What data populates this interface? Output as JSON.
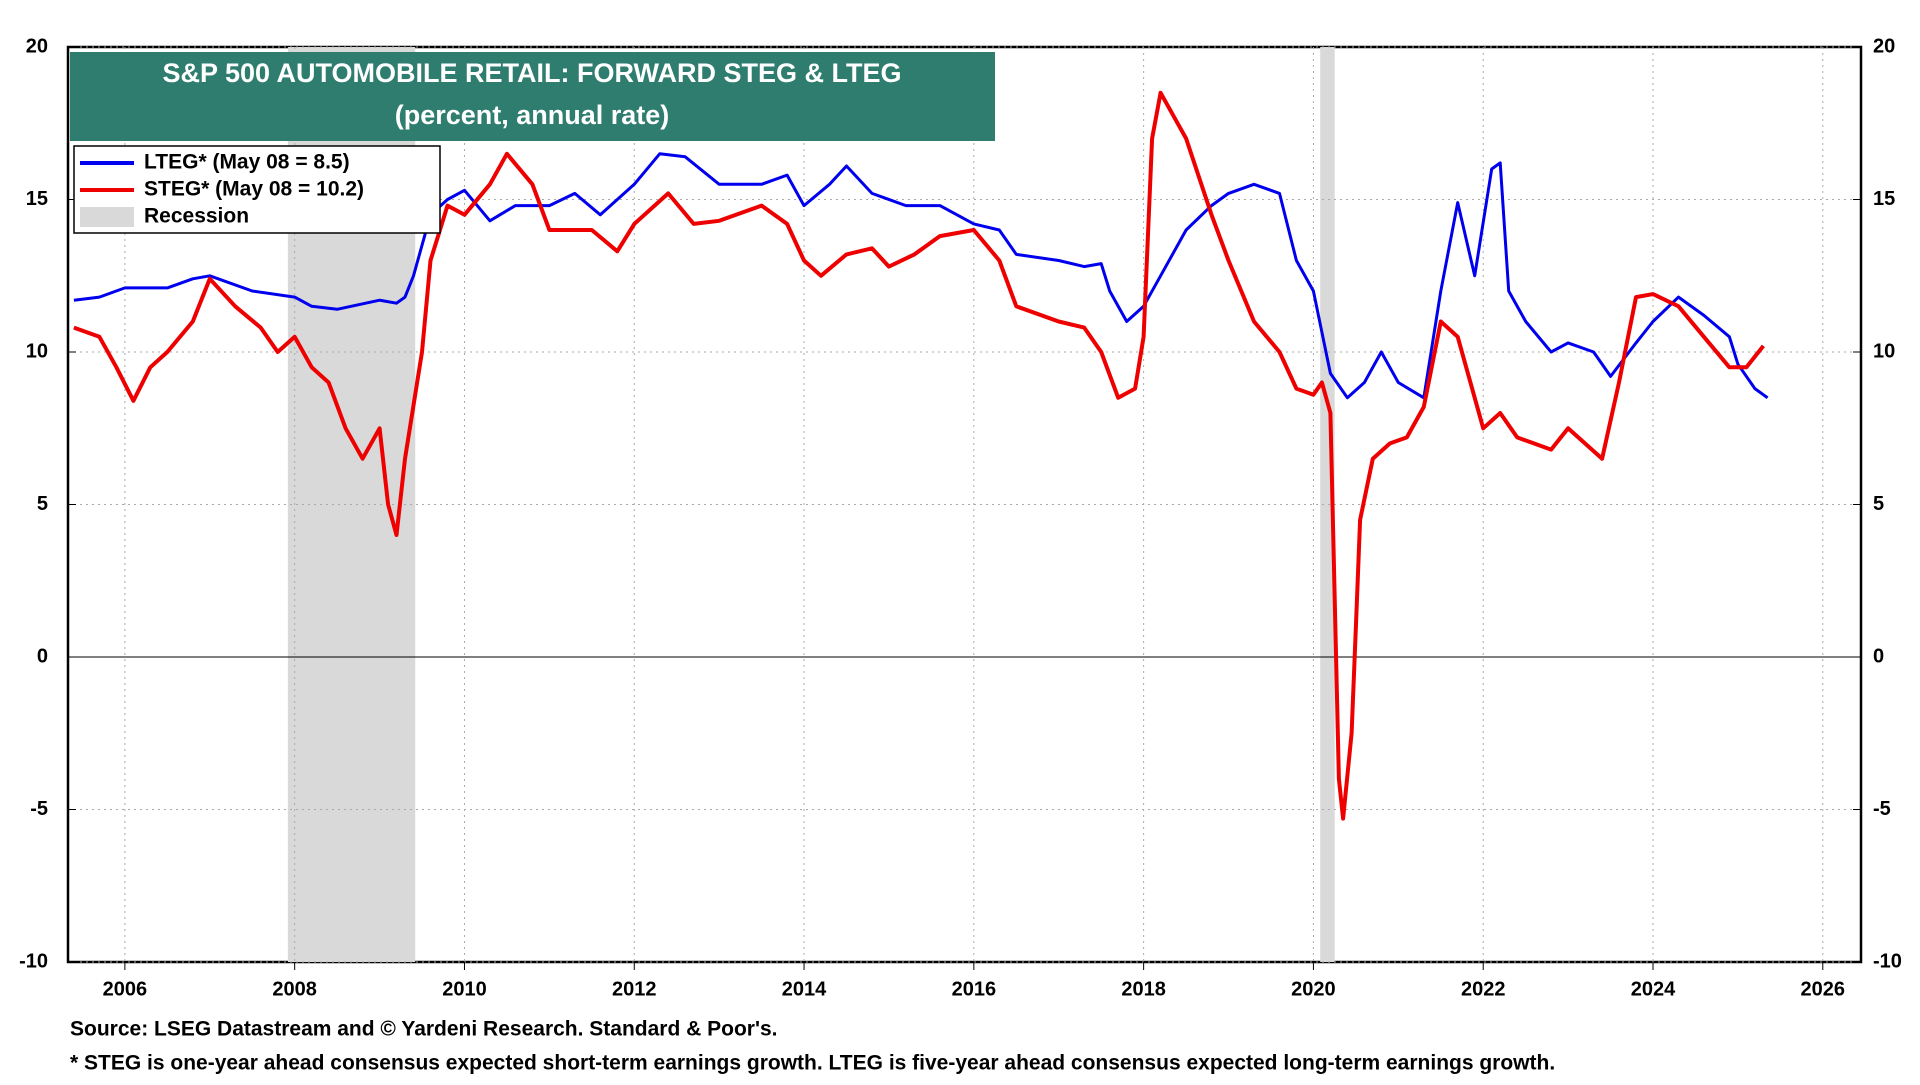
{
  "chart_data": {
    "type": "line",
    "title": "S&P 500 AUTOMOBILE RETAIL: FORWARD STEG & LTEG",
    "subtitle": "(percent, annual rate)",
    "xlim": [
      2005.33,
      2026.45
    ],
    "xticks": [
      2006,
      2008,
      2010,
      2012,
      2014,
      2016,
      2018,
      2020,
      2022,
      2024,
      2026
    ],
    "ylim": [
      -10,
      20
    ],
    "yticks": [
      -10,
      -5,
      0,
      5,
      10,
      15,
      20
    ],
    "grid": true,
    "legend": "upper left",
    "shading": {
      "name": "Recession",
      "color": "#d9d9d9",
      "ranges": [
        [
          2007.92,
          2009.42
        ],
        [
          2020.08,
          2020.25
        ]
      ]
    },
    "series": [
      {
        "name": "LTEG* (May 08 = 8.5)",
        "color": "#0000ee",
        "x": [
          2005.4,
          2005.7,
          2006.0,
          2006.5,
          2006.8,
          2007.0,
          2007.5,
          2008.0,
          2008.2,
          2008.5,
          2009.0,
          2009.2,
          2009.3,
          2009.4,
          2009.6,
          2009.8,
          2010.0,
          2010.3,
          2010.6,
          2011.0,
          2011.3,
          2011.6,
          2012.0,
          2012.3,
          2012.6,
          2013.0,
          2013.5,
          2013.8,
          2014.0,
          2014.3,
          2014.5,
          2014.8,
          2015.2,
          2015.6,
          2016.0,
          2016.3,
          2016.5,
          2017.0,
          2017.3,
          2017.5,
          2017.6,
          2017.8,
          2018.0,
          2018.2,
          2018.5,
          2018.8,
          2019.0,
          2019.3,
          2019.6,
          2019.8,
          2020.0,
          2020.2,
          2020.4,
          2020.6,
          2020.8,
          2021.0,
          2021.3,
          2021.5,
          2021.7,
          2021.9,
          2022.1,
          2022.2,
          2022.3,
          2022.5,
          2022.8,
          2023.0,
          2023.3,
          2023.5,
          2023.8,
          2024.0,
          2024.3,
          2024.6,
          2024.9,
          2025.0,
          2025.2,
          2025.35
        ],
        "values": [
          11.7,
          11.8,
          12.1,
          12.1,
          12.4,
          12.5,
          12.0,
          11.8,
          11.5,
          11.4,
          11.7,
          11.6,
          11.8,
          12.5,
          14.5,
          15.0,
          15.3,
          14.3,
          14.8,
          14.8,
          15.2,
          14.5,
          15.5,
          16.5,
          16.4,
          15.5,
          15.5,
          15.8,
          14.8,
          15.5,
          16.1,
          15.2,
          14.8,
          14.8,
          14.2,
          14.0,
          13.2,
          13.0,
          12.8,
          12.9,
          12.0,
          11.0,
          11.5,
          12.5,
          14.0,
          14.8,
          15.2,
          15.5,
          15.2,
          13.0,
          12.0,
          9.3,
          8.5,
          9.0,
          10.0,
          9.0,
          8.5,
          12.0,
          14.9,
          12.5,
          16.0,
          16.2,
          12.0,
          11.0,
          10.0,
          10.3,
          10.0,
          9.2,
          10.3,
          11.0,
          11.8,
          11.2,
          10.5,
          9.6,
          8.8,
          8.5
        ]
      },
      {
        "name": "STEG* (May 08 = 10.2)",
        "color": "#ee0000",
        "x": [
          2005.4,
          2005.7,
          2005.9,
          2006.1,
          2006.3,
          2006.5,
          2006.8,
          2007.0,
          2007.3,
          2007.6,
          2007.8,
          2008.0,
          2008.2,
          2008.4,
          2008.6,
          2008.8,
          2009.0,
          2009.1,
          2009.2,
          2009.3,
          2009.5,
          2009.6,
          2009.8,
          2010.0,
          2010.3,
          2010.5,
          2010.8,
          2011.0,
          2011.5,
          2011.8,
          2012.0,
          2012.4,
          2012.7,
          2013.0,
          2013.5,
          2013.8,
          2014.0,
          2014.2,
          2014.5,
          2014.8,
          2015.0,
          2015.3,
          2015.6,
          2016.0,
          2016.3,
          2016.5,
          2017.0,
          2017.3,
          2017.5,
          2017.7,
          2017.9,
          2018.0,
          2018.1,
          2018.2,
          2018.5,
          2018.8,
          2019.0,
          2019.3,
          2019.6,
          2019.8,
          2020.0,
          2020.1,
          2020.2,
          2020.3,
          2020.35,
          2020.45,
          2020.5,
          2020.55,
          2020.7,
          2020.9,
          2021.1,
          2021.3,
          2021.5,
          2021.7,
          2021.9,
          2022.0,
          2022.2,
          2022.4,
          2022.6,
          2022.8,
          2023.0,
          2023.2,
          2023.4,
          2023.6,
          2023.8,
          2024.0,
          2024.3,
          2024.6,
          2024.9,
          2025.1,
          2025.3
        ],
        "values": [
          10.8,
          10.5,
          9.5,
          8.4,
          9.5,
          10.0,
          11.0,
          12.4,
          11.5,
          10.8,
          10.0,
          10.5,
          9.5,
          9.0,
          7.5,
          6.5,
          7.5,
          5.0,
          4.0,
          6.5,
          10.0,
          13.0,
          14.8,
          14.5,
          15.5,
          16.5,
          15.5,
          14.0,
          14.0,
          13.3,
          14.2,
          15.2,
          14.2,
          14.3,
          14.8,
          14.2,
          13.0,
          12.5,
          13.2,
          13.4,
          12.8,
          13.2,
          13.8,
          14.0,
          13.0,
          11.5,
          11.0,
          10.8,
          10.0,
          8.5,
          8.8,
          10.5,
          17.0,
          18.5,
          17.0,
          14.5,
          13.0,
          11.0,
          10.0,
          8.8,
          8.6,
          9.0,
          8.0,
          -4.0,
          -5.3,
          -2.5,
          1.0,
          4.5,
          6.5,
          7.0,
          7.2,
          8.2,
          11.0,
          10.5,
          8.5,
          7.5,
          8.0,
          7.2,
          7.0,
          6.8,
          7.5,
          7.0,
          6.5,
          9.0,
          11.8,
          11.9,
          11.5,
          10.5,
          9.5,
          9.5,
          10.2
        ]
      }
    ],
    "source": "Source: LSEG Datastream and © Yardeni Research. Standard & Poor's.",
    "note": "* STEG is one-year ahead consensus expected short-term earnings growth. LTEG is five-year ahead consensus expected long-term earnings growth."
  }
}
